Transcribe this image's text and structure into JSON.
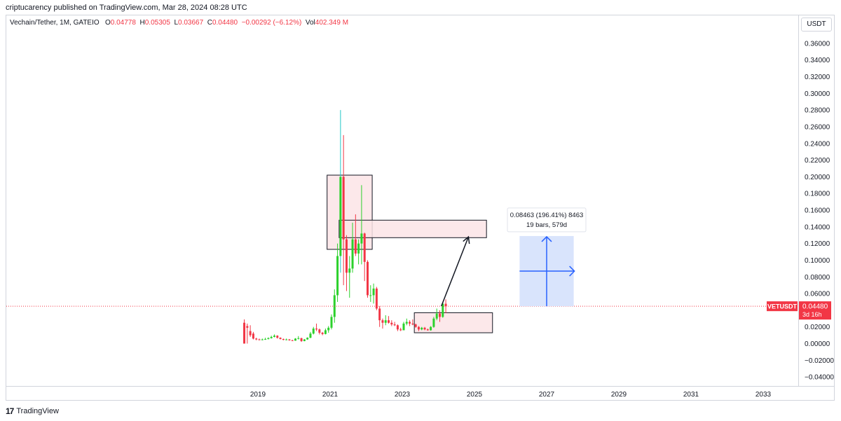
{
  "header": {
    "publisher": "criptucarency published on TradingView.com, Mar 28, 2024 08:28 UTC"
  },
  "legend": {
    "symbol": "Vechain/Tether, 1M, GATEIO",
    "o_label": "O",
    "o": "0.04778",
    "h_label": "H",
    "h": "0.05305",
    "l_label": "L",
    "l": "0.03667",
    "c_label": "C",
    "c": "0.04480",
    "change": "−0.00292 (−6.12%)",
    "vol_label": "Vol",
    "vol": "402.349 M"
  },
  "price_axis": {
    "currency": "USDT",
    "ticks": [
      "0.36000",
      "0.34000",
      "0.32000",
      "0.30000",
      "0.28000",
      "0.26000",
      "0.24000",
      "0.22000",
      "0.20000",
      "0.18000",
      "0.16000",
      "0.14000",
      "0.12000",
      "0.10000",
      "0.08000",
      "0.06000",
      "0.02000",
      "0.00000",
      "−0.02000",
      "−0.04000"
    ],
    "current_price_label": {
      "symbol": "VETUSDT",
      "price": "0.04480",
      "countdown": "3d 16h"
    }
  },
  "time_axis": {
    "ticks": [
      "2019",
      "2021",
      "2023",
      "2025",
      "2027",
      "2029",
      "2031",
      "2033"
    ]
  },
  "measure_tooltip": {
    "line1": "0.08463 (196.41%) 8463",
    "line2": "19 bars, 579d"
  },
  "footer": {
    "brand": "TradingView"
  },
  "colors": {
    "up": "#089981",
    "up_bright": "#2bd12b",
    "down": "#f23645",
    "zone_fill": "#fce4e6",
    "measure_fill": "#d9e4fc",
    "measure_arrow": "#2962ff",
    "price_line": "#f23645",
    "spike_wick": "#22c7c7"
  },
  "chart_data": {
    "type": "candlestick",
    "interval": "1M",
    "x_axis_years": [
      "2019",
      "2021",
      "2023",
      "2025",
      "2027",
      "2029",
      "2031",
      "2033"
    ],
    "ylim": [
      -0.045,
      0.375
    ],
    "current_price": 0.0448,
    "candles": [
      {
        "t": "2018-08",
        "o": 0.025,
        "h": 0.029,
        "l": 0.0,
        "c": 0.0
      },
      {
        "t": "2018-09",
        "o": 0.021,
        "h": 0.024,
        "l": 0.0,
        "c": 0.019
      },
      {
        "t": "2018-10",
        "o": 0.015,
        "h": 0.022,
        "l": 0.008,
        "c": 0.01
      },
      {
        "t": "2018-11",
        "o": 0.012,
        "h": 0.014,
        "l": 0.005,
        "c": 0.006
      },
      {
        "t": "2018-12",
        "o": 0.006,
        "h": 0.007,
        "l": 0.004,
        "c": 0.005
      },
      {
        "t": "2019-01",
        "o": 0.005,
        "h": 0.006,
        "l": 0.004,
        "c": 0.0045
      },
      {
        "t": "2019-02",
        "o": 0.0045,
        "h": 0.006,
        "l": 0.004,
        "c": 0.005
      },
      {
        "t": "2019-03",
        "o": 0.005,
        "h": 0.007,
        "l": 0.0045,
        "c": 0.0055
      },
      {
        "t": "2019-04",
        "o": 0.0055,
        "h": 0.0075,
        "l": 0.005,
        "c": 0.0065
      },
      {
        "t": "2019-05",
        "o": 0.0065,
        "h": 0.0095,
        "l": 0.006,
        "c": 0.008
      },
      {
        "t": "2019-06",
        "o": 0.008,
        "h": 0.011,
        "l": 0.0075,
        "c": 0.0095
      },
      {
        "t": "2019-07",
        "o": 0.0095,
        "h": 0.01,
        "l": 0.006,
        "c": 0.007
      },
      {
        "t": "2019-08",
        "o": 0.007,
        "h": 0.0075,
        "l": 0.005,
        "c": 0.0055
      },
      {
        "t": "2019-09",
        "o": 0.0055,
        "h": 0.006,
        "l": 0.004,
        "c": 0.0045
      },
      {
        "t": "2019-10",
        "o": 0.0045,
        "h": 0.006,
        "l": 0.004,
        "c": 0.005
      },
      {
        "t": "2019-11",
        "o": 0.005,
        "h": 0.0055,
        "l": 0.0035,
        "c": 0.004
      },
      {
        "t": "2019-12",
        "o": 0.004,
        "h": 0.0045,
        "l": 0.003,
        "c": 0.0035
      },
      {
        "t": "2020-01",
        "o": 0.0035,
        "h": 0.0065,
        "l": 0.0035,
        "c": 0.006
      },
      {
        "t": "2020-02",
        "o": 0.006,
        "h": 0.009,
        "l": 0.005,
        "c": 0.0065
      },
      {
        "t": "2020-03",
        "o": 0.0065,
        "h": 0.007,
        "l": 0.002,
        "c": 0.003
      },
      {
        "t": "2020-04",
        "o": 0.003,
        "h": 0.0055,
        "l": 0.0028,
        "c": 0.005
      },
      {
        "t": "2020-05",
        "o": 0.005,
        "h": 0.0075,
        "l": 0.0045,
        "c": 0.007
      },
      {
        "t": "2020-06",
        "o": 0.007,
        "h": 0.014,
        "l": 0.0065,
        "c": 0.012
      },
      {
        "t": "2020-07",
        "o": 0.012,
        "h": 0.02,
        "l": 0.011,
        "c": 0.018
      },
      {
        "t": "2020-08",
        "o": 0.018,
        "h": 0.024,
        "l": 0.015,
        "c": 0.017
      },
      {
        "t": "2020-09",
        "o": 0.017,
        "h": 0.018,
        "l": 0.011,
        "c": 0.013
      },
      {
        "t": "2020-10",
        "o": 0.013,
        "h": 0.014,
        "l": 0.01,
        "c": 0.0115
      },
      {
        "t": "2020-11",
        "o": 0.0115,
        "h": 0.018,
        "l": 0.011,
        "c": 0.016
      },
      {
        "t": "2020-12",
        "o": 0.016,
        "h": 0.021,
        "l": 0.013,
        "c": 0.019
      },
      {
        "t": "2021-01",
        "o": 0.019,
        "h": 0.035,
        "l": 0.017,
        "c": 0.032
      },
      {
        "t": "2021-02",
        "o": 0.032,
        "h": 0.065,
        "l": 0.025,
        "c": 0.058
      },
      {
        "t": "2021-03",
        "o": 0.058,
        "h": 0.12,
        "l": 0.05,
        "c": 0.105
      },
      {
        "t": "2021-04",
        "o": 0.105,
        "h": 0.28,
        "l": 0.085,
        "c": 0.2
      },
      {
        "t": "2021-05",
        "o": 0.2,
        "h": 0.25,
        "l": 0.07,
        "c": 0.125
      },
      {
        "t": "2021-06",
        "o": 0.125,
        "h": 0.13,
        "l": 0.063,
        "c": 0.085
      },
      {
        "t": "2021-07",
        "o": 0.085,
        "h": 0.105,
        "l": 0.055,
        "c": 0.09
      },
      {
        "t": "2021-08",
        "o": 0.09,
        "h": 0.145,
        "l": 0.085,
        "c": 0.125
      },
      {
        "t": "2021-09",
        "o": 0.125,
        "h": 0.155,
        "l": 0.105,
        "c": 0.108
      },
      {
        "t": "2021-10",
        "o": 0.108,
        "h": 0.125,
        "l": 0.095,
        "c": 0.12
      },
      {
        "t": "2021-11",
        "o": 0.12,
        "h": 0.19,
        "l": 0.095,
        "c": 0.132
      },
      {
        "t": "2021-12",
        "o": 0.132,
        "h": 0.133,
        "l": 0.075,
        "c": 0.098
      },
      {
        "t": "2022-01",
        "o": 0.098,
        "h": 0.1,
        "l": 0.055,
        "c": 0.058
      },
      {
        "t": "2022-02",
        "o": 0.058,
        "h": 0.07,
        "l": 0.05,
        "c": 0.058
      },
      {
        "t": "2022-03",
        "o": 0.058,
        "h": 0.072,
        "l": 0.048,
        "c": 0.066
      },
      {
        "t": "2022-04",
        "o": 0.066,
        "h": 0.068,
        "l": 0.04,
        "c": 0.042
      },
      {
        "t": "2022-05",
        "o": 0.042,
        "h": 0.045,
        "l": 0.02,
        "c": 0.028
      },
      {
        "t": "2022-06",
        "o": 0.028,
        "h": 0.03,
        "l": 0.018,
        "c": 0.025
      },
      {
        "t": "2022-07",
        "o": 0.025,
        "h": 0.034,
        "l": 0.022,
        "c": 0.028
      },
      {
        "t": "2022-08",
        "o": 0.028,
        "h": 0.033,
        "l": 0.024,
        "c": 0.025
      },
      {
        "t": "2022-09",
        "o": 0.025,
        "h": 0.028,
        "l": 0.021,
        "c": 0.023
      },
      {
        "t": "2022-10",
        "o": 0.023,
        "h": 0.026,
        "l": 0.021,
        "c": 0.022
      },
      {
        "t": "2022-11",
        "o": 0.022,
        "h": 0.023,
        "l": 0.015,
        "c": 0.017
      },
      {
        "t": "2022-12",
        "o": 0.017,
        "h": 0.019,
        "l": 0.015,
        "c": 0.016
      },
      {
        "t": "2023-01",
        "o": 0.016,
        "h": 0.026,
        "l": 0.016,
        "c": 0.024
      },
      {
        "t": "2023-02",
        "o": 0.024,
        "h": 0.03,
        "l": 0.022,
        "c": 0.026
      },
      {
        "t": "2023-03",
        "o": 0.026,
        "h": 0.028,
        "l": 0.021,
        "c": 0.024
      },
      {
        "t": "2023-04",
        "o": 0.024,
        "h": 0.029,
        "l": 0.022,
        "c": 0.023
      },
      {
        "t": "2023-05",
        "o": 0.023,
        "h": 0.024,
        "l": 0.019,
        "c": 0.02
      },
      {
        "t": "2023-06",
        "o": 0.02,
        "h": 0.021,
        "l": 0.015,
        "c": 0.017
      },
      {
        "t": "2023-07",
        "o": 0.017,
        "h": 0.02,
        "l": 0.016,
        "c": 0.019
      },
      {
        "t": "2023-08",
        "o": 0.019,
        "h": 0.02,
        "l": 0.016,
        "c": 0.017
      },
      {
        "t": "2023-09",
        "o": 0.017,
        "h": 0.018,
        "l": 0.0155,
        "c": 0.016
      },
      {
        "t": "2023-10",
        "o": 0.016,
        "h": 0.021,
        "l": 0.0155,
        "c": 0.02
      },
      {
        "t": "2023-11",
        "o": 0.02,
        "h": 0.032,
        "l": 0.019,
        "c": 0.03
      },
      {
        "t": "2023-12",
        "o": 0.03,
        "h": 0.042,
        "l": 0.028,
        "c": 0.036
      },
      {
        "t": "2024-01",
        "o": 0.036,
        "h": 0.04,
        "l": 0.026,
        "c": 0.032
      },
      {
        "t": "2024-02",
        "o": 0.032,
        "h": 0.05,
        "l": 0.031,
        "c": 0.0478
      },
      {
        "t": "2024-03",
        "o": 0.04778,
        "h": 0.05305,
        "l": 0.03667,
        "c": 0.0448
      }
    ],
    "drawings": {
      "zones": [
        {
          "name": "top-zone",
          "t1": "2020-12",
          "t2": "2022-03",
          "p1": 0.113,
          "p2": 0.202
        },
        {
          "name": "resistance-zone",
          "t1": "2021-04",
          "t2": "2025-05",
          "p1": 0.127,
          "p2": 0.148
        },
        {
          "name": "support-zone",
          "t1": "2023-05",
          "t2": "2025-07",
          "p1": 0.013,
          "p2": 0.037
        }
      ],
      "arrow": {
        "from": {
          "t": "2024-02",
          "p": 0.045
        },
        "to": {
          "t": "2024-11",
          "p": 0.128
        }
      },
      "measure": {
        "t1": "2026-04",
        "t2": "2027-10",
        "p1": 0.0448,
        "p2": 0.129
      }
    }
  }
}
